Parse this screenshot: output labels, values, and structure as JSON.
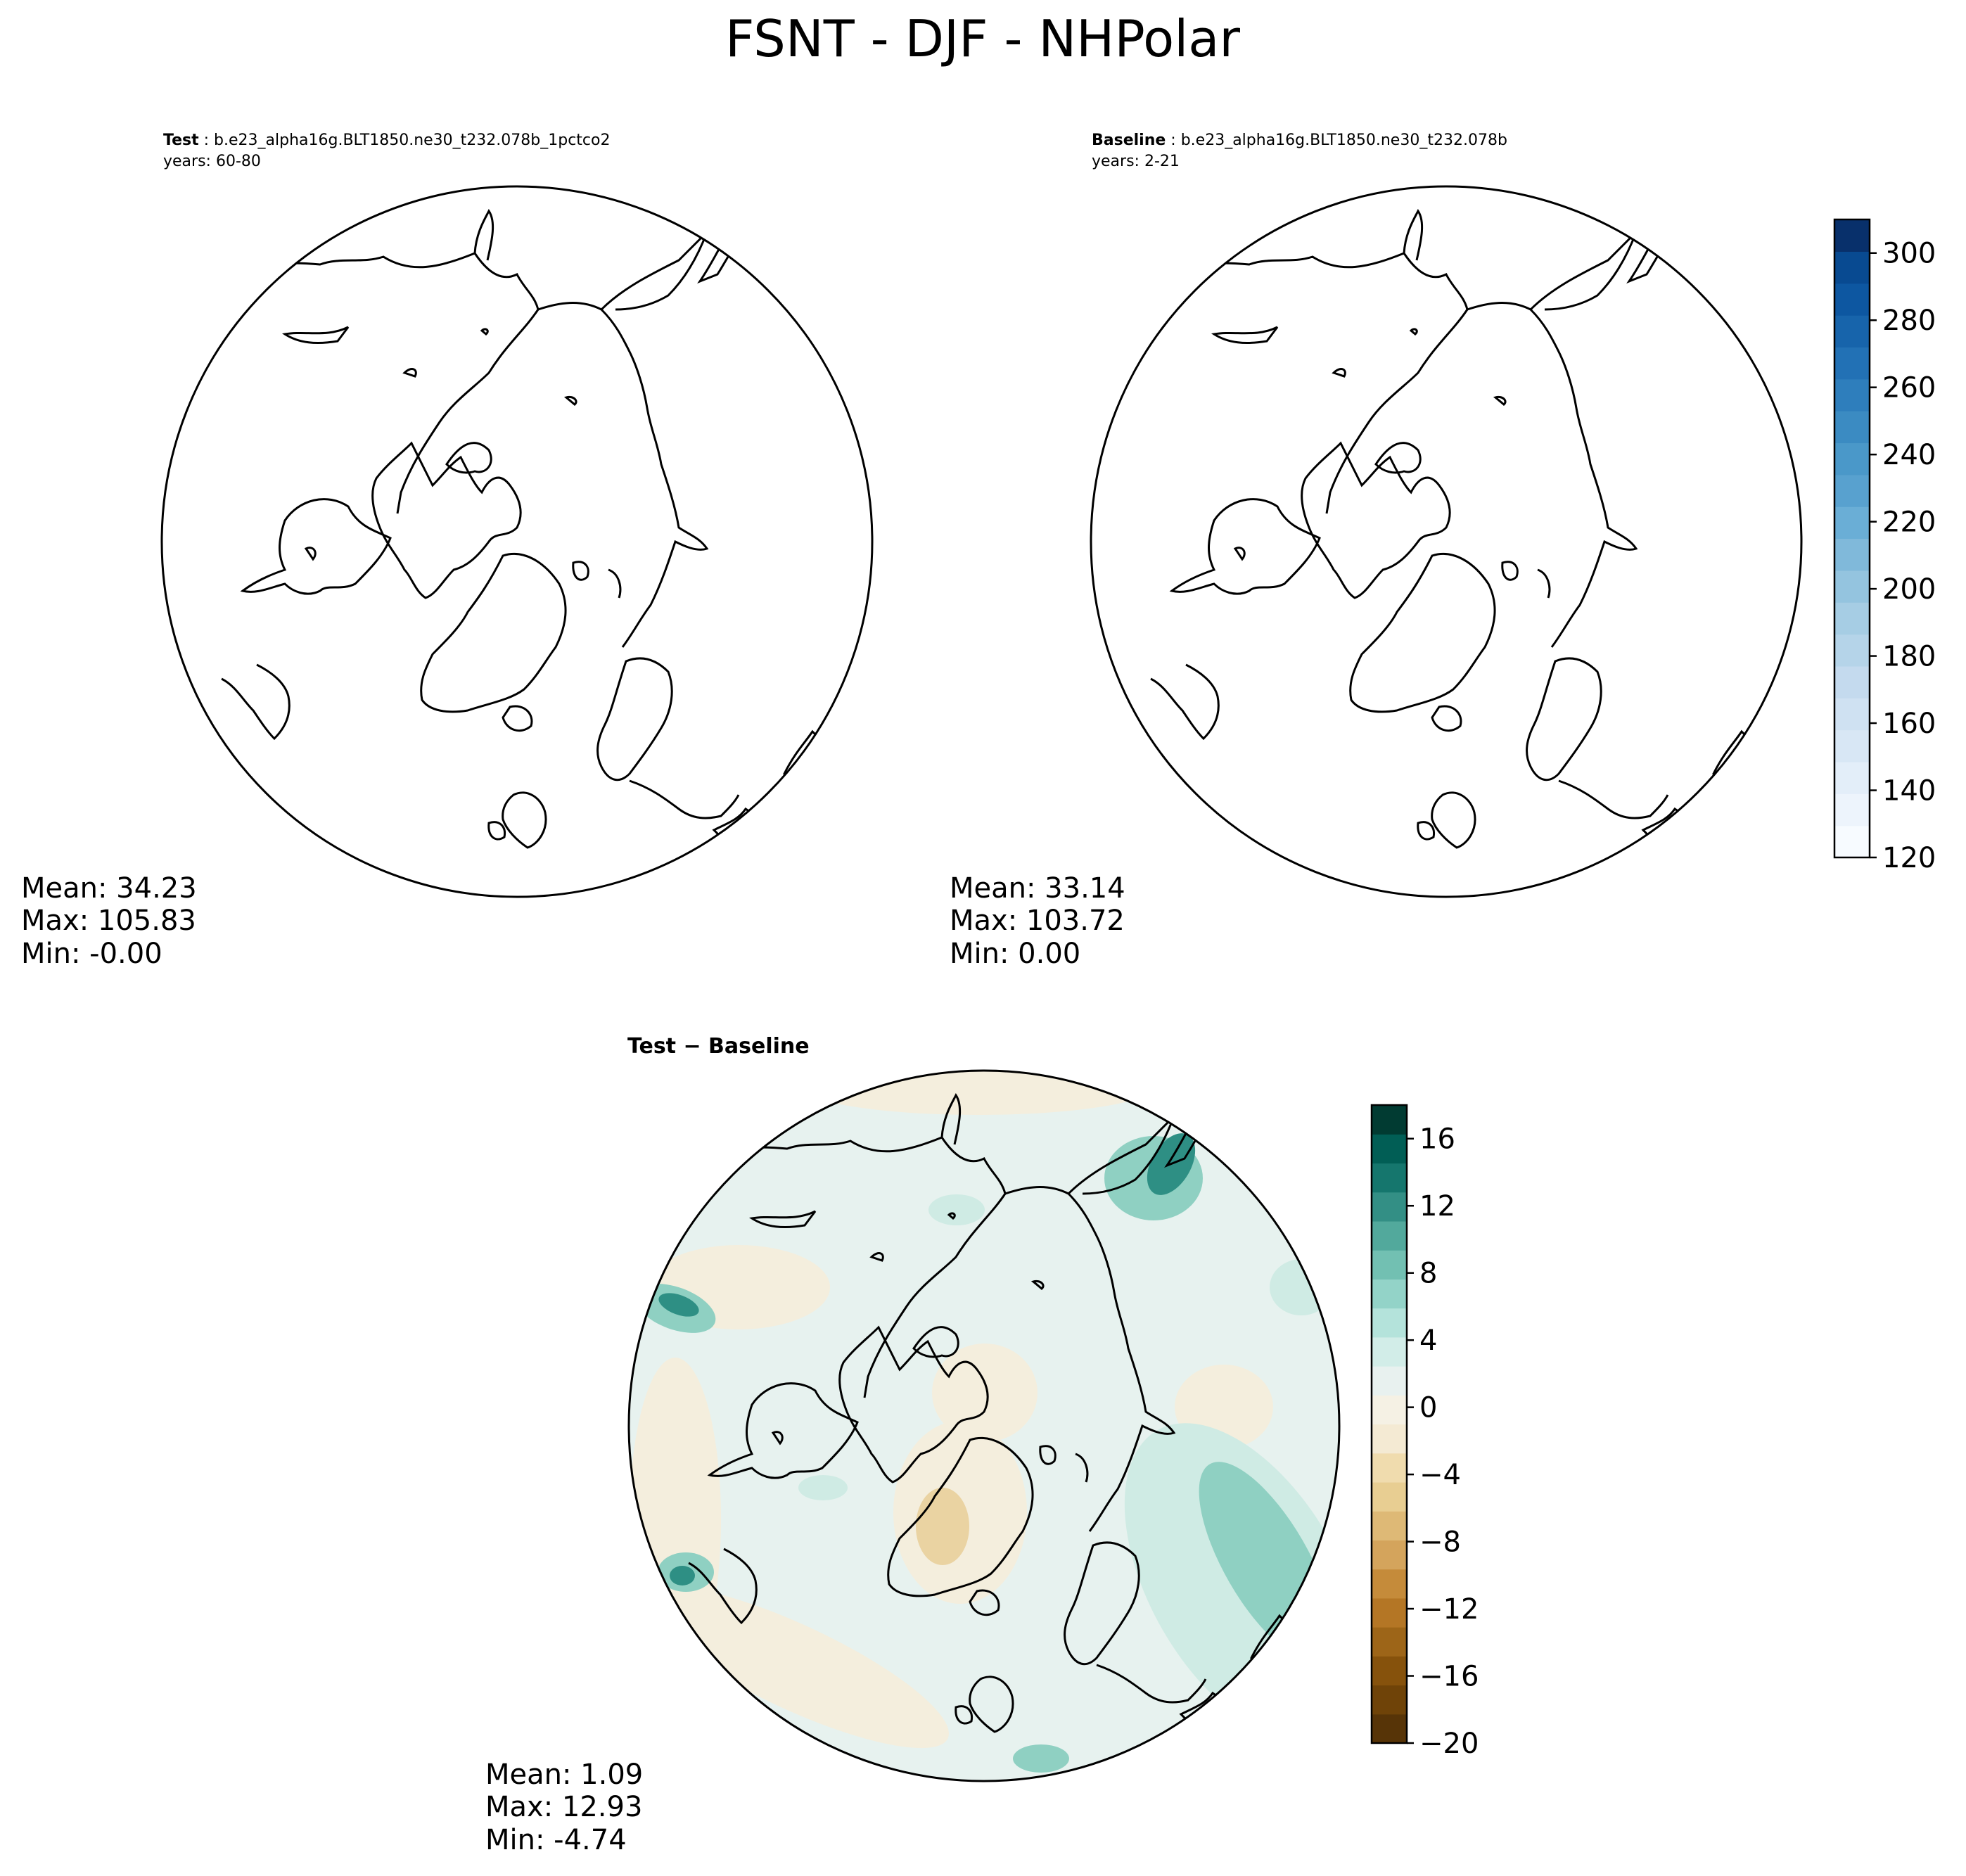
{
  "figure": {
    "title": "FSNT - DJF - NHPolar"
  },
  "panels": {
    "test": {
      "label_bold": "Test",
      "label_rest": ": b.e23_alpha16g.BLT1850.ne30_t232.078b_1pctco2",
      "years": "years: 60-80",
      "stats": {
        "mean": "Mean: 34.23",
        "max": "Max: 105.83",
        "min": "Min: -0.00"
      }
    },
    "baseline": {
      "label_bold": "Baseline",
      "label_rest": ": b.e23_alpha16g.BLT1850.ne30_t232.078b",
      "years": "years: 2-21",
      "stats": {
        "mean": "Mean: 33.14",
        "max": "Max: 103.72",
        "min": "Min:  0.00"
      }
    },
    "diff": {
      "label": "Test − Baseline",
      "stats": {
        "mean": "Mean:  1.09",
        "max": "Max: 12.93",
        "min": "Min: -4.74"
      }
    }
  },
  "colorbars": {
    "top": {
      "colormap": "Blues",
      "range": [
        120,
        310
      ],
      "ticks": [
        "120",
        "140",
        "160",
        "180",
        "200",
        "220",
        "240",
        "260",
        "280",
        "300"
      ],
      "colors": [
        "#f7fbff",
        "#edf4fc",
        "#e3eef9",
        "#d8e7f5",
        "#cfe1f2",
        "#c4daee",
        "#b5d4e9",
        "#a6cde4",
        "#94c4df",
        "#80b9da",
        "#6aaed6",
        "#58a1cf",
        "#4a98c9",
        "#3b8bc2",
        "#2e7ebc",
        "#2271b5",
        "#1764ab",
        "#0d57a1",
        "#084a91",
        "#08306b"
      ]
    },
    "bottom": {
      "colormap": "BrBG",
      "range": [
        -20,
        18
      ],
      "ticks": [
        "−20",
        "−16",
        "−12",
        "−8",
        "−4",
        "0",
        "4",
        "8",
        "12",
        "16"
      ],
      "colors": [
        "#573407",
        "#6f4308",
        "#86520c",
        "#9d6518",
        "#b47625",
        "#c58b3a",
        "#d4a45c",
        "#deb976",
        "#e8ce92",
        "#f0dcae",
        "#f4ead3",
        "#f5f1e4",
        "#e8f1ef",
        "#d2ede8",
        "#b4e3db",
        "#93d3c8",
        "#72c0b2",
        "#52a99c",
        "#338f85",
        "#15766d",
        "#015e55",
        "#013b32"
      ]
    }
  },
  "colors": {
    "diff_background": "#e7f2ef",
    "diff_beige": "#f4eedd",
    "diff_teal_light": "#cfebe4",
    "diff_teal_mid": "#8fd0c2",
    "diff_teal_dark": "#2e8f84",
    "diff_tan": "#ead3a2",
    "coastline": "#000000"
  }
}
